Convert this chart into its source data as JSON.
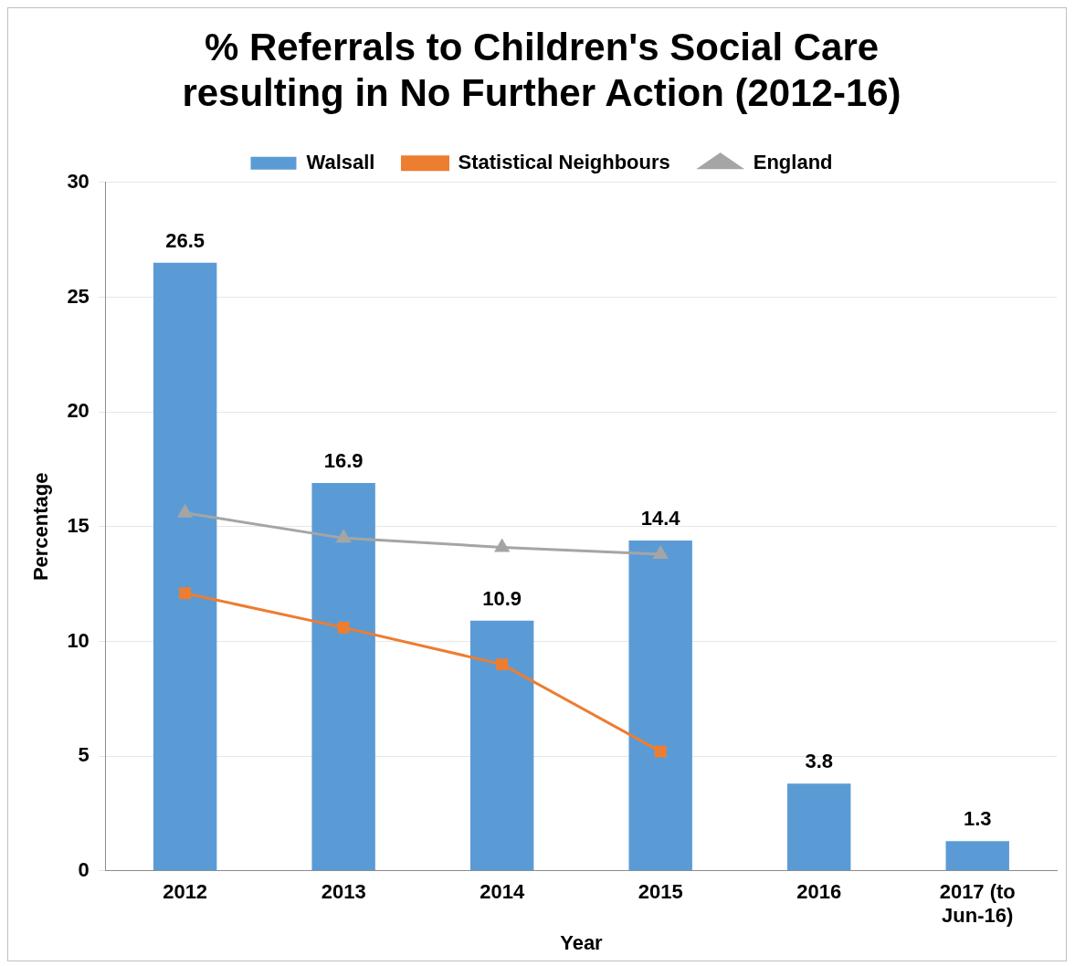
{
  "chart_data": {
    "type": "bar",
    "title": "% Referrals to Children's Social Care resulting in No Further Action (2012-16)",
    "xlabel": "Year",
    "ylabel": "Percentage",
    "categories": [
      "2012",
      "2013",
      "2014",
      "2015",
      "2016",
      "2017 (to Jun-16)"
    ],
    "series": [
      {
        "name": "Walsall",
        "color": "#5b9bd5",
        "values": [
          26.5,
          16.9,
          10.9,
          14.4,
          3.8,
          1.3
        ],
        "value_labels": [
          "26.5",
          "16.9",
          "10.9",
          "14.4",
          "3.8",
          "1.3"
        ]
      },
      {
        "name": "Statistical Neighbours",
        "type": "line",
        "color": "#ed7d31",
        "marker": "square",
        "values": [
          12.1,
          10.6,
          9.0,
          5.2,
          null,
          null
        ]
      },
      {
        "name": "England",
        "type": "line",
        "color": "#a5a5a5",
        "marker": "triangle",
        "values": [
          15.6,
          14.5,
          14.1,
          13.8,
          null,
          null
        ]
      }
    ],
    "ylim": [
      0,
      30
    ],
    "yticks": [
      0,
      5,
      10,
      15,
      20,
      25,
      30
    ],
    "grid": "y",
    "legend": "top"
  }
}
